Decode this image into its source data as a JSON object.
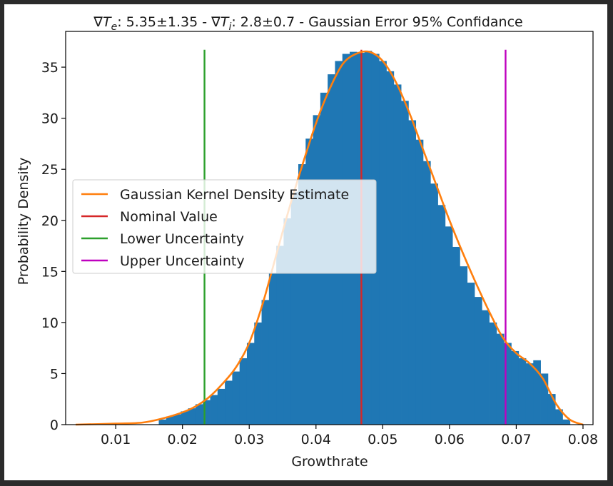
{
  "chart_data": {
    "type": "bar",
    "title": "∇Te: 5.35±1.35  -  ∇Ti: 2.8±0.7  -  Gaussian Error 95% Confidance",
    "title_parts": {
      "nabla": "∇",
      "te_sym": "T",
      "te_sub": "e",
      "te_rest": ": 5.35±1.35  -  ",
      "ti_sym": "T",
      "ti_sub": "i",
      "ti_rest": ": 2.8±0.7  -  Gaussian Error 95% Confidance"
    },
    "xlabel": "Growthrate",
    "ylabel": "Probability Density",
    "xlim": [
      0.0025,
      0.0815
    ],
    "ylim": [
      0,
      38.5
    ],
    "xticks": [
      0.01,
      0.02,
      0.03,
      0.04,
      0.05,
      0.06,
      0.07,
      0.08
    ],
    "xtick_labels": [
      "0.01",
      "0.02",
      "0.03",
      "0.04",
      "0.05",
      "0.06",
      "0.07",
      "0.08"
    ],
    "yticks": [
      0,
      5,
      10,
      15,
      20,
      25,
      30,
      35
    ],
    "ytick_labels": [
      "0",
      "5",
      "10",
      "15",
      "20",
      "25",
      "30",
      "35"
    ],
    "grid": false,
    "legend_position": "center-left",
    "histogram": {
      "name": "",
      "color": "#1f77b4",
      "x": [
        0.017,
        0.0181,
        0.0192,
        0.0203,
        0.0214,
        0.0225,
        0.0236,
        0.0247,
        0.0258,
        0.0269,
        0.028,
        0.0291,
        0.0302,
        0.0313,
        0.0324,
        0.0335,
        0.0346,
        0.0357,
        0.0368,
        0.0379,
        0.039,
        0.0401,
        0.0412,
        0.0423,
        0.0434,
        0.0445,
        0.0456,
        0.0467,
        0.0478,
        0.0489,
        0.05,
        0.0511,
        0.0522,
        0.0533,
        0.0544,
        0.0555,
        0.0566,
        0.0577,
        0.0588,
        0.0599,
        0.061,
        0.0621,
        0.0632,
        0.0643,
        0.0654,
        0.0665,
        0.0676,
        0.0687,
        0.0698,
        0.0709,
        0.072,
        0.0731,
        0.0742,
        0.0753,
        0.0764,
        0.0775
      ],
      "values": [
        0.5,
        0.8,
        1.0,
        1.3,
        1.6,
        2.0,
        2.4,
        2.9,
        3.5,
        4.3,
        5.2,
        6.5,
        8.0,
        10.0,
        12.2,
        14.8,
        17.5,
        20.2,
        22.8,
        25.5,
        28.0,
        30.3,
        32.5,
        34.3,
        35.6,
        36.3,
        36.5,
        36.4,
        36.6,
        36.3,
        35.6,
        34.6,
        33.3,
        31.7,
        29.8,
        27.9,
        25.8,
        23.6,
        21.5,
        19.4,
        17.4,
        15.5,
        13.9,
        12.5,
        11.2,
        10.0,
        8.9,
        8.0,
        7.2,
        6.5,
        6.0,
        6.3,
        5.0,
        3.0,
        1.5,
        0.5
      ]
    },
    "series": [
      {
        "name": "Gaussian Kernel Density Estimate",
        "color": "#ff7f0e",
        "x": [
          0.004,
          0.01,
          0.014,
          0.017,
          0.02,
          0.022,
          0.024,
          0.026,
          0.028,
          0.03,
          0.032,
          0.034,
          0.036,
          0.038,
          0.04,
          0.042,
          0.044,
          0.046,
          0.048,
          0.05,
          0.052,
          0.054,
          0.056,
          0.058,
          0.06,
          0.062,
          0.064,
          0.066,
          0.068,
          0.07,
          0.072,
          0.074,
          0.076,
          0.078,
          0.08
        ],
        "y": [
          0.0,
          0.1,
          0.2,
          0.6,
          1.2,
          1.8,
          2.7,
          4.0,
          5.6,
          8.0,
          11.8,
          16.5,
          21.2,
          25.5,
          29.5,
          32.8,
          35.3,
          36.3,
          36.5,
          35.6,
          33.5,
          30.5,
          27.0,
          23.5,
          20.0,
          16.8,
          13.8,
          11.0,
          8.5,
          7.0,
          6.0,
          4.5,
          2.0,
          0.5,
          0.0
        ]
      }
    ],
    "vlines": [
      {
        "name": "Nominal Value",
        "x": 0.0468,
        "color": "#d62728"
      },
      {
        "name": "Lower Uncertainty",
        "x": 0.0233,
        "color": "#2ca02c"
      },
      {
        "name": "Upper Uncertainty",
        "x": 0.0684,
        "color": "#bf00bf"
      }
    ],
    "vline_top": 36.7,
    "legend": {
      "items": [
        {
          "label": "Gaussian Kernel Density Estimate",
          "color": "#ff7f0e"
        },
        {
          "label": "Nominal Value",
          "color": "#d62728"
        },
        {
          "label": "Lower Uncertainty",
          "color": "#2ca02c"
        },
        {
          "label": "Upper Uncertainty",
          "color": "#bf00bf"
        }
      ]
    }
  }
}
